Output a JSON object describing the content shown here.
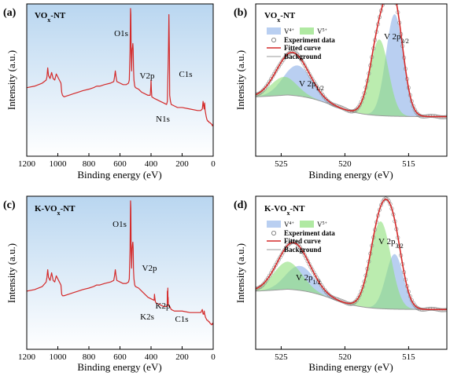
{
  "colors": {
    "xps_red": "#d42a2a",
    "v4_fill": "#7fa8e6",
    "v5_fill": "#8ee07a",
    "background_gray": "#9a9a9a",
    "survey_gradient_top": "#b9d6f0",
    "survey_gradient_bottom": "#ffffff"
  },
  "panels": {
    "a": {
      "letter": "(a)",
      "sample_main": "VO",
      "sample_sub": "x",
      "sample_tail": "-NT",
      "xlabel": "Binding energy (eV)",
      "ylabel": "Intensity (a.u.)",
      "peaks": {
        "o1s": "O1s",
        "v2p": "V2p",
        "c1s": "C1s",
        "n1s": "N1s"
      }
    },
    "b": {
      "letter": "(b)",
      "sample_main": "VO",
      "sample_sub": "x",
      "sample_tail": "-NT",
      "xlabel": "Binding energy (eV)",
      "ylabel": "Intensity (a.u.)",
      "legend": {
        "v4_main": "V",
        "v4_sup": "4+",
        "v5_main": "V",
        "v5_sup": "5+",
        "exp": "Experiment data",
        "fit": "Fitted curve",
        "bg": "Background"
      },
      "peak_labels": {
        "p12_main": "V 2p",
        "p12_sub": "1/2",
        "p32_main": "V 2p",
        "p32_sub": "3/2"
      }
    },
    "c": {
      "letter": "(c)",
      "sample_main": "K-VO",
      "sample_sub": "x",
      "sample_tail": "-NT",
      "xlabel": "Binding energy (eV)",
      "ylabel": "Intensity (a.u.)",
      "peaks": {
        "o1s": "O1s",
        "v2p": "V2p",
        "k2p": "K2p",
        "k2s": "K2s",
        "c1s": "C1s"
      }
    },
    "d": {
      "letter": "(d)",
      "sample_main": "K-VO",
      "sample_sub": "x",
      "sample_tail": "-NT",
      "xlabel": "Binding energy (eV)",
      "ylabel": "Intensity (a.u.)",
      "legend": {
        "v4_main": "V",
        "v4_sup": "4+",
        "v5_main": "V",
        "v5_sup": "5+",
        "exp": "Experiment data",
        "fit": "Fitted curve",
        "bg": "Background"
      },
      "peak_labels": {
        "p12_main": "V 2p",
        "p12_sub": "1/2",
        "p32_main": "V 2p",
        "p32_sub": "3/2"
      }
    }
  },
  "chart_data": [
    {
      "panel": "a",
      "type": "line",
      "xlabel": "Binding energy (eV)",
      "ylabel": "Intensity (a.u.)",
      "xlim": [
        1200,
        0
      ],
      "x_reversed": true,
      "ylim": [
        0,
        100
      ],
      "xticks": [
        1200,
        1000,
        800,
        600,
        400,
        200,
        0
      ],
      "yticks": [],
      "background": "baseline",
      "series": [
        {
          "x": [
            1200,
            1150,
            1100,
            1075,
            1070,
            1065,
            1060,
            1050,
            1040,
            1030,
            1020,
            1015,
            1010,
            1000,
            990,
            980,
            975,
            970,
            960,
            930,
            900,
            870,
            840,
            800,
            770,
            750,
            730,
            700,
            660,
            640,
            635,
            630,
            625,
            620,
            600,
            580,
            560,
            545,
            540,
            535,
            532,
            530,
            528,
            525,
            522,
            519,
            517,
            515,
            513,
            510,
            505,
            500,
            480,
            460,
            440,
            420,
            405,
            402,
            400,
            398,
            395,
            380,
            360,
            340,
            320,
            300,
            295,
            288,
            285,
            282,
            280,
            275,
            270,
            250,
            230,
            200,
            150,
            100,
            80,
            70,
            65,
            60,
            58,
            55,
            52,
            50,
            45,
            40,
            35,
            30,
            25,
            20,
            10,
            5,
            0
          ],
          "y": [
            45,
            46,
            48,
            50,
            52,
            58,
            53,
            51,
            55,
            51,
            50,
            52,
            54,
            52,
            50,
            48,
            42,
            40,
            39,
            40,
            41,
            42,
            43,
            44,
            45,
            46,
            46,
            47,
            48,
            49,
            52,
            56,
            52,
            49,
            48,
            47,
            47,
            48,
            50,
            70,
            97,
            93,
            68,
            56,
            70,
            72,
            74,
            70,
            58,
            50,
            46,
            45,
            44,
            42,
            41,
            40,
            40,
            45,
            50,
            44,
            39,
            38,
            37,
            36,
            35,
            34,
            36,
            70,
            93,
            70,
            40,
            36,
            34,
            33,
            32,
            32,
            31,
            30,
            30,
            31,
            36,
            32,
            31,
            35,
            30,
            29,
            26,
            24,
            23,
            23,
            22,
            22,
            21,
            20,
            21
          ]
        }
      ]
    },
    {
      "panel": "b",
      "type": "line",
      "xlabel": "Binding energy (eV)",
      "ylabel": "Intensity (a.u.)",
      "xlim": [
        527,
        512
      ],
      "x_reversed": true,
      "ylim": [
        0,
        100
      ],
      "xticks": [
        525,
        520,
        515
      ],
      "background_model": {
        "edge_y": 23,
        "step_y": 15,
        "center": 521,
        "width": 1.2,
        "decay_y": 3,
        "decay_width": 2.5,
        "shirley_onset": 524.5
      },
      "components": [
        {
          "label": "V4+ 2p3/2",
          "center": 516.1,
          "amplitude": 67,
          "fwhm": 1.6
        },
        {
          "label": "V5+ 2p3/2",
          "center": 517.3,
          "amplitude": 50,
          "fwhm": 1.7
        },
        {
          "label": "V4+ 2p1/2",
          "center": 523.7,
          "amplitude": 20,
          "fwhm": 2.6
        },
        {
          "label": "V5+ 2p1/2",
          "center": 524.8,
          "amplitude": 12,
          "fwhm": 2.4
        }
      ]
    },
    {
      "panel": "c",
      "type": "line",
      "xlabel": "Binding energy (eV)",
      "ylabel": "Intensity (a.u.)",
      "xlim": [
        1200,
        0
      ],
      "x_reversed": true,
      "ylim": [
        0,
        100
      ],
      "xticks": [
        1200,
        1000,
        800,
        600,
        400,
        200,
        0
      ],
      "yticks": [],
      "series": [
        {
          "x": [
            1200,
            1150,
            1100,
            1075,
            1070,
            1065,
            1060,
            1050,
            1040,
            1030,
            1020,
            1015,
            1010,
            1000,
            990,
            980,
            975,
            970,
            960,
            930,
            900,
            870,
            840,
            800,
            770,
            750,
            730,
            700,
            660,
            640,
            635,
            630,
            625,
            620,
            600,
            580,
            560,
            545,
            540,
            535,
            532,
            530,
            528,
            525,
            522,
            519,
            517,
            515,
            513,
            510,
            505,
            500,
            480,
            460,
            440,
            420,
            400,
            380,
            378,
            376,
            372,
            365,
            360,
            340,
            320,
            300,
            296,
            295,
            293,
            292,
            291,
            290,
            289,
            288,
            285,
            282,
            280,
            275,
            270,
            250,
            230,
            200,
            150,
            100,
            80,
            70,
            65,
            60,
            58,
            55,
            52,
            50,
            45,
            40,
            35,
            30,
            25,
            20,
            10,
            5,
            0
          ],
          "y": [
            38,
            39,
            41,
            44,
            47,
            52,
            47,
            45,
            50,
            45,
            44,
            46,
            48,
            46,
            44,
            42,
            36,
            35,
            35,
            36,
            37,
            38,
            39,
            40,
            41,
            42,
            42,
            43,
            44,
            45,
            48,
            52,
            48,
            45,
            44,
            43,
            43,
            44,
            46,
            66,
            97,
            92,
            64,
            53,
            66,
            69,
            70,
            66,
            52,
            46,
            42,
            41,
            40,
            38,
            36,
            34,
            33,
            32,
            36,
            34,
            31,
            30,
            30,
            29,
            28,
            28,
            28,
            38,
            31,
            40,
            30,
            34,
            29,
            29,
            28,
            28,
            28,
            27,
            26,
            25,
            25,
            25,
            24,
            24,
            24,
            26,
            23,
            23,
            25,
            23,
            22,
            21,
            20,
            19,
            19,
            18,
            18,
            17,
            16,
            17,
            16
          ]
        }
      ]
    },
    {
      "panel": "d",
      "type": "line",
      "xlabel": "Binding energy (eV)",
      "ylabel": "Intensity (a.u.)",
      "xlim": [
        527,
        512
      ],
      "x_reversed": true,
      "ylim": [
        0,
        100
      ],
      "xticks": [
        525,
        520,
        515
      ],
      "background_model": {
        "edge_y": 23,
        "step_y": 14,
        "center": 521,
        "width": 1.2,
        "decay_y": 3,
        "decay_width": 2.5,
        "shirley_onset": 524.5
      },
      "components": [
        {
          "label": "V4+ 2p3/2",
          "center": 516.1,
          "amplitude": 36,
          "fwhm": 1.6
        },
        {
          "label": "V5+ 2p3/2",
          "center": 517.2,
          "amplitude": 57,
          "fwhm": 1.9
        },
        {
          "label": "V4+ 2p1/2",
          "center": 523.5,
          "amplitude": 16,
          "fwhm": 2.6
        },
        {
          "label": "V5+ 2p1/2",
          "center": 524.5,
          "amplitude": 18,
          "fwhm": 2.6
        }
      ]
    }
  ]
}
